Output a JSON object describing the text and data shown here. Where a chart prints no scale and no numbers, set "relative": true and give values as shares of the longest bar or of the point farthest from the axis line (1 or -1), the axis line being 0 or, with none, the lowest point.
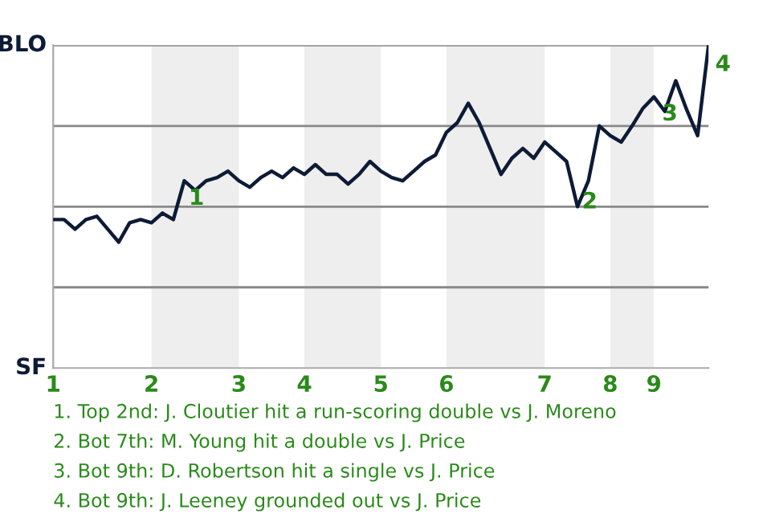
{
  "chart_data": {
    "type": "line",
    "relative": true,
    "categories": [
      "1",
      null,
      null,
      null,
      null,
      null,
      null,
      null,
      null,
      "2",
      null,
      null,
      null,
      null,
      null,
      null,
      null,
      "3",
      null,
      null,
      null,
      null,
      null,
      "4",
      null,
      null,
      null,
      null,
      null,
      null,
      "5",
      null,
      null,
      null,
      null,
      null,
      "6",
      null,
      null,
      null,
      null,
      null,
      null,
      null,
      null,
      "7",
      null,
      null,
      null,
      null,
      null,
      "8",
      null,
      null,
      null,
      "9",
      null,
      null,
      null,
      null,
      null
    ],
    "series": [
      {
        "color": "#0d1b36",
        "values": [
          0.46,
          0.46,
          0.43,
          0.46,
          0.47,
          0.43,
          0.39,
          0.45,
          0.46,
          0.45,
          0.48,
          0.46,
          0.58,
          0.55,
          0.58,
          0.59,
          0.61,
          0.58,
          0.56,
          0.59,
          0.61,
          0.59,
          0.62,
          0.6,
          0.63,
          0.6,
          0.6,
          0.57,
          0.6,
          0.64,
          0.61,
          0.59,
          0.58,
          0.61,
          0.64,
          0.66,
          0.73,
          0.76,
          0.82,
          0.76,
          0.68,
          0.6,
          0.65,
          0.68,
          0.65,
          0.7,
          0.67,
          0.64,
          0.5,
          0.58,
          0.75,
          0.72,
          0.7,
          0.75,
          0.805,
          0.84,
          0.795,
          0.89,
          0.8,
          0.72,
          1.0
        ]
      }
    ],
    "marker": "none",
    "line_style": "solid",
    "ref_lines": [
      {
        "axis": "y",
        "value": 0.25,
        "color": "#888888"
      },
      {
        "axis": "y",
        "value": 0.5,
        "color": "#888888"
      },
      {
        "axis": "y",
        "value": 0.75,
        "color": "#888888"
      },
      {
        "axis": "y",
        "value": 1.0,
        "color": "#888888"
      }
    ],
    "annotations": [
      "BLO",
      "SF",
      "4",
      {
        "text": "1",
        "y": 0.58
      },
      {
        "text": "2",
        "y": 0.5
      },
      {
        "text": "3",
        "y": 0.8
      },
      "1. Top 2nd: J. Cloutier hit a run-scoring double vs J. Moreno",
      "2. Bot 7th: M. Young hit a double vs J. Price",
      "3. Bot 9th: D. Robertson hit a single vs J. Price",
      "4. Bot 9th: J. Leeney grounded out vs J. Price"
    ]
  }
}
